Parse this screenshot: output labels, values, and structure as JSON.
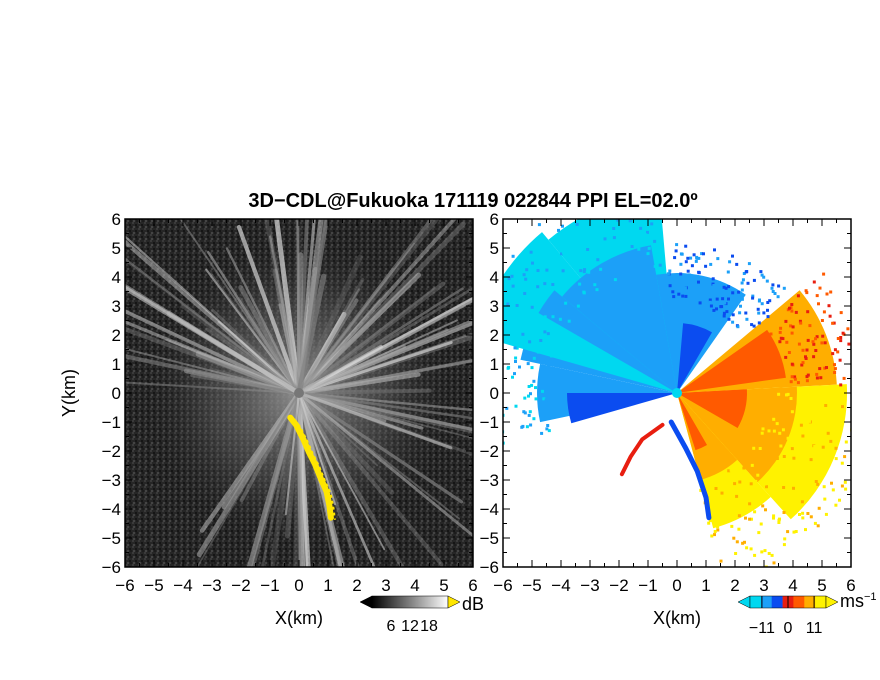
{
  "chart_data": {
    "title": "3D−CDL@Fukuoka 171119 022844 PPI EL=02.0º",
    "panels": [
      {
        "type": "heatmap",
        "quantity": "signal (dB)",
        "xlabel": "X(km)",
        "ylabel": "Y(km)",
        "xlim": [
          -6,
          6
        ],
        "ylim": [
          -6,
          6
        ],
        "xticks": [
          "−6",
          "−5",
          "−4",
          "−3",
          "−2",
          "−1",
          "0",
          "1",
          "2",
          "3",
          "4",
          "5",
          "6"
        ],
        "yticks": [
          "6",
          "5",
          "4",
          "3",
          "2",
          "1",
          "0",
          "−1",
          "−2",
          "−3",
          "−4",
          "−5",
          "−6"
        ],
        "background_color": "#232323",
        "highlight_color": "#ffe600",
        "highlight_path_km": [
          [
            -0.3,
            -0.85
          ],
          [
            -0.1,
            -1.1
          ],
          [
            0.15,
            -1.6
          ],
          [
            0.35,
            -2.05
          ],
          [
            0.55,
            -2.45
          ],
          [
            0.75,
            -2.95
          ],
          [
            0.95,
            -3.4
          ],
          [
            1.05,
            -3.9
          ],
          [
            1.1,
            -4.3
          ]
        ],
        "colorbar": {
          "unit": "dB",
          "ticks": [
            "6",
            "12",
            "18"
          ],
          "range": [
            0,
            24
          ]
        }
      },
      {
        "type": "heatmap",
        "quantity": "radial velocity (ms⁻¹)",
        "xlabel": "X(km)",
        "ylabel": "",
        "xlim": [
          -6,
          6
        ],
        "ylim": [
          -6,
          6
        ],
        "xticks": [
          "−6",
          "−5",
          "−4",
          "−3",
          "−2",
          "−1",
          "0",
          "1",
          "2",
          "3",
          "4",
          "5",
          "6"
        ],
        "yticks": [
          "6",
          "5",
          "4",
          "3",
          "2",
          "1",
          "0",
          "−1",
          "−2",
          "−3",
          "−4",
          "−5",
          "−6"
        ],
        "colorbar": {
          "unit": "ms",
          "unit_exponent": "−1",
          "ticks": [
            "−11",
            "0",
            "11"
          ],
          "range": [
            -16,
            16
          ],
          "colors": [
            "#00d8f0",
            "#1ca0f8",
            "#0b4cf0",
            "#e81e10",
            "#ff5a00",
            "#ffae00",
            "#fff200"
          ]
        }
      }
    ]
  }
}
